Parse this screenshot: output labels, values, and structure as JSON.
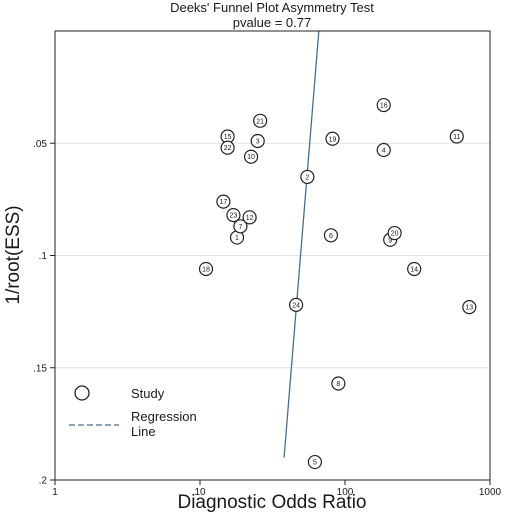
{
  "chart_data": {
    "type": "scatter",
    "title": "Deeks' Funnel Plot Asymmetry Test",
    "subtitle": "pvalue  =    0.77",
    "xlabel": "Diagnostic Odds Ratio",
    "ylabel": "1/root(ESS)",
    "x_scale": "log",
    "xlim": [
      1,
      1000
    ],
    "ylim": [
      0.2,
      0.0
    ],
    "y_reversed": true,
    "x_ticks": [
      1,
      10,
      100,
      1000
    ],
    "x_tick_labels": [
      "1",
      "10",
      "100",
      "1000"
    ],
    "y_ticks": [
      0.05,
      0.1,
      0.15,
      0.2
    ],
    "y_tick_labels": [
      ".05",
      ".1",
      ".15",
      ".2"
    ],
    "grid": "horizontal",
    "legend": {
      "placement": "bottom-left",
      "entries": [
        {
          "label": "Study",
          "symbol": "circle"
        },
        {
          "label": "Regression\nLine",
          "symbol": "dashed-line"
        }
      ]
    },
    "studies": [
      {
        "id": "1",
        "x": 18,
        "y": 0.092
      },
      {
        "id": "2",
        "x": 55,
        "y": 0.065
      },
      {
        "id": "3",
        "x": 25,
        "y": 0.049
      },
      {
        "id": "4",
        "x": 185,
        "y": 0.053
      },
      {
        "id": "5",
        "x": 62,
        "y": 0.192
      },
      {
        "id": "6",
        "x": 80,
        "y": 0.091
      },
      {
        "id": "7",
        "x": 19,
        "y": 0.087
      },
      {
        "id": "8",
        "x": 90,
        "y": 0.157
      },
      {
        "id": "9",
        "x": 205,
        "y": 0.093
      },
      {
        "id": "10",
        "x": 22.5,
        "y": 0.056
      },
      {
        "id": "11",
        "x": 590,
        "y": 0.047
      },
      {
        "id": "12",
        "x": 22,
        "y": 0.083
      },
      {
        "id": "13",
        "x": 720,
        "y": 0.123
      },
      {
        "id": "14",
        "x": 300,
        "y": 0.106
      },
      {
        "id": "15",
        "x": 15.5,
        "y": 0.047
      },
      {
        "id": "16",
        "x": 185,
        "y": 0.033
      },
      {
        "id": "17",
        "x": 14.5,
        "y": 0.076
      },
      {
        "id": "18",
        "x": 11,
        "y": 0.106
      },
      {
        "id": "19",
        "x": 82,
        "y": 0.048
      },
      {
        "id": "20",
        "x": 220,
        "y": 0.09
      },
      {
        "id": "21",
        "x": 26,
        "y": 0.04
      },
      {
        "id": "22",
        "x": 15.5,
        "y": 0.052
      },
      {
        "id": "23",
        "x": 17,
        "y": 0.082
      },
      {
        "id": "24",
        "x": 46,
        "y": 0.122
      }
    ],
    "regression_line": [
      {
        "x": 38,
        "y": 0.19
      },
      {
        "x": 66,
        "y": 0.0
      }
    ]
  }
}
